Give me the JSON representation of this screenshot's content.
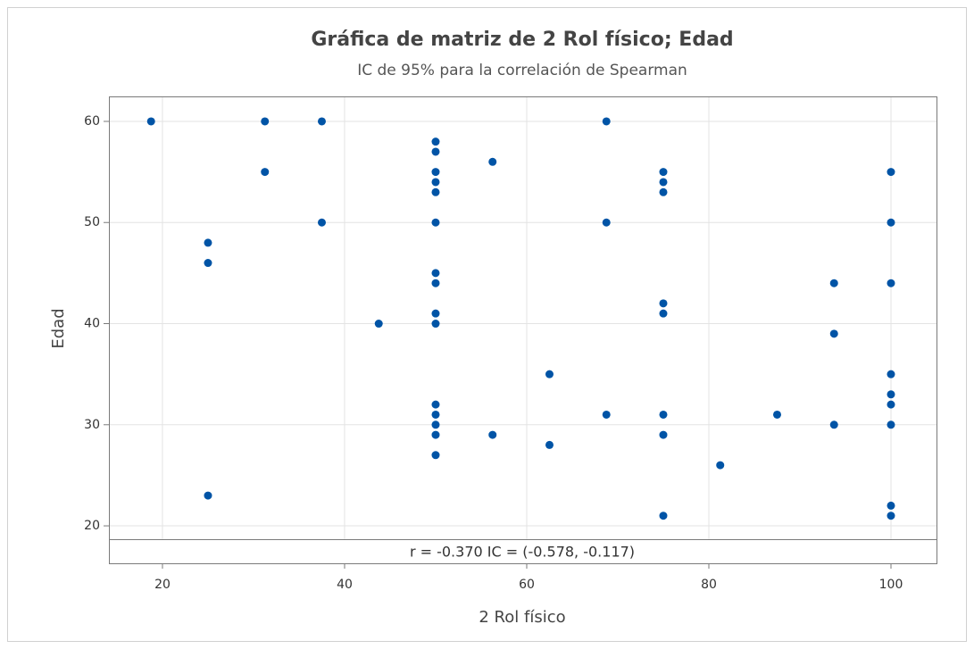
{
  "chart_data": {
    "type": "scatter",
    "title": "Gráfica de matriz de 2 Rol físico; Edad",
    "subtitle": "IC de 95% para la correlación de Spearman",
    "x_label": "2 Rol físico",
    "y_label": "Edad",
    "annotation": "r = -0.370  IC = (-0.578, -0.117)",
    "color": "#0054a6",
    "grid": true,
    "xlim": [
      14.12,
      105.0
    ],
    "ylim": [
      18.68,
      62.47
    ],
    "xticks": [
      20,
      40,
      60,
      80,
      100
    ],
    "yticks": [
      20,
      30,
      40,
      50,
      60
    ],
    "x": [
      18.75,
      25,
      25,
      25,
      31.25,
      31.25,
      37.5,
      37.5,
      43.75,
      50,
      50,
      50,
      50,
      50,
      50,
      50,
      50,
      50,
      50,
      50,
      50,
      50,
      50,
      50,
      56.25,
      56.25,
      62.5,
      62.5,
      68.75,
      68.75,
      68.75,
      75,
      75,
      75,
      75,
      75,
      75,
      75,
      75,
      81.25,
      87.5,
      93.75,
      93.75,
      93.75,
      100,
      100,
      100,
      100,
      100,
      100,
      100,
      100,
      100
    ],
    "y": [
      60,
      48,
      46,
      23,
      60,
      55,
      60,
      50,
      40,
      58,
      57,
      55,
      54,
      53,
      50,
      45,
      44,
      41,
      40,
      32,
      31,
      30,
      29,
      27,
      56,
      29,
      35,
      28,
      60,
      50,
      31,
      55,
      54,
      53,
      42,
      41,
      31,
      29,
      21,
      26,
      31,
      44,
      39,
      30,
      55,
      50,
      44,
      35,
      33,
      32,
      30,
      22,
      21
    ]
  }
}
